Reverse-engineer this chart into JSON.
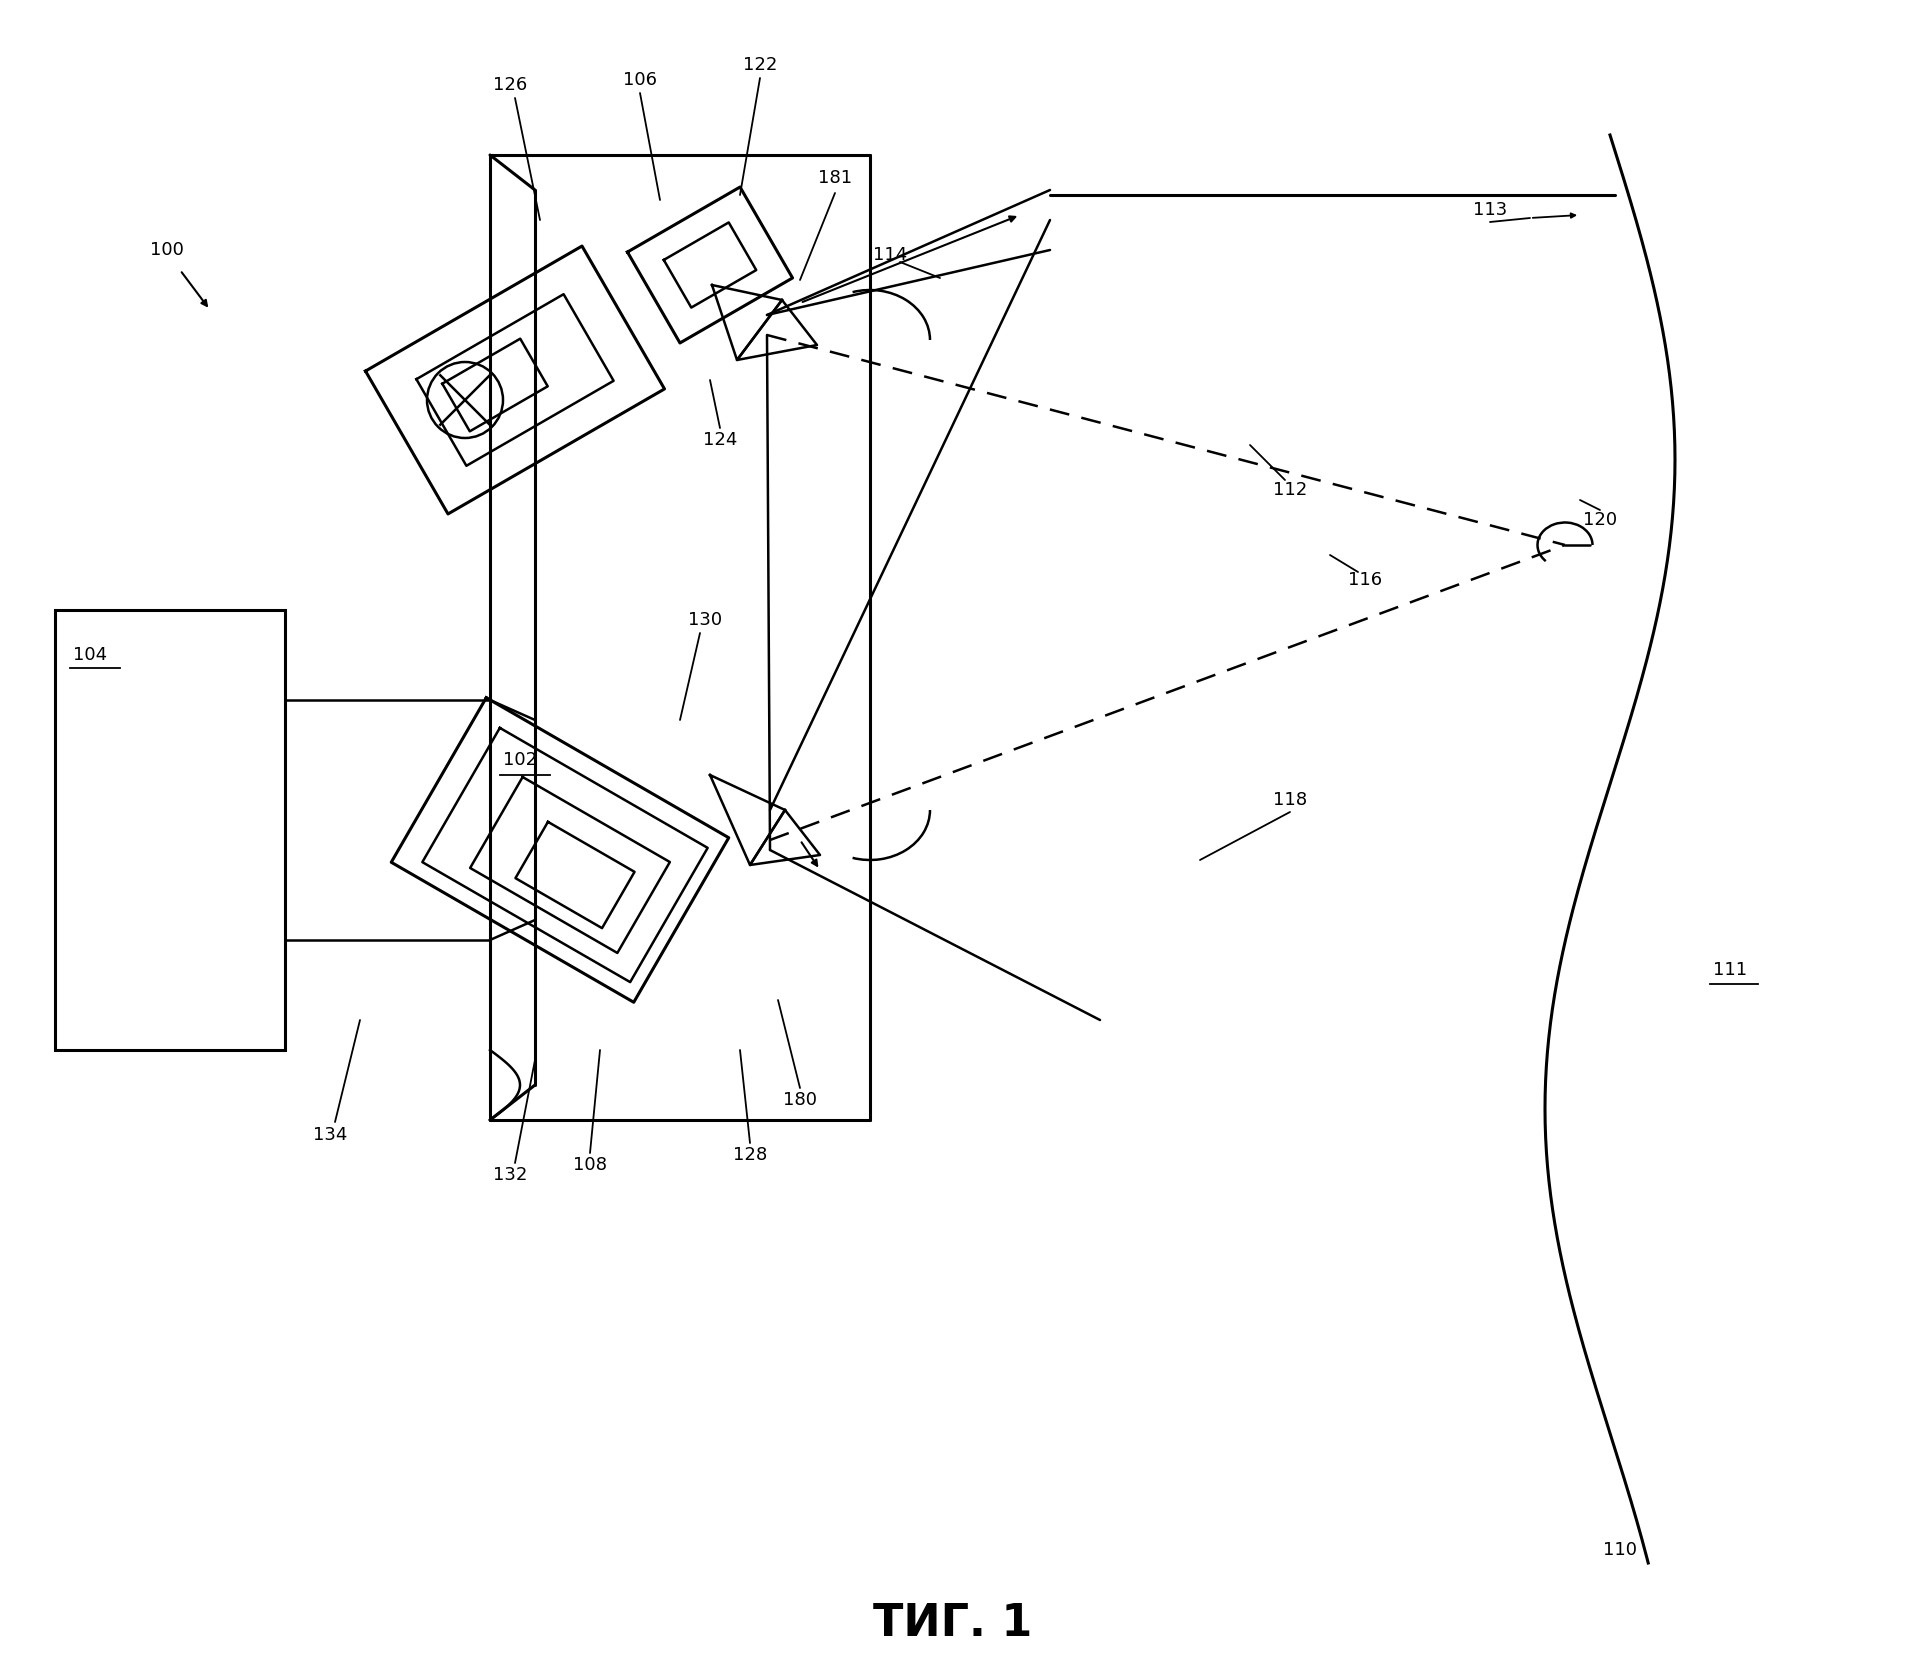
{
  "fig_label": "ΤИГ. 1",
  "bg": "#ffffff",
  "lw": 1.8,
  "lw_thick": 2.2,
  "lw_thin": 1.3,
  "fontsize": 13,
  "fontsize_caption": 32
}
